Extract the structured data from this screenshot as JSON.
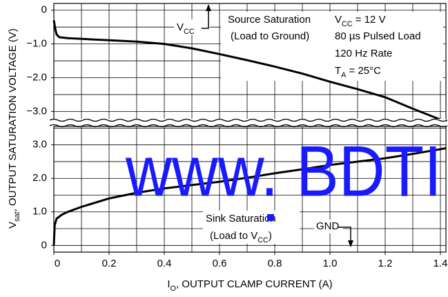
{
  "chart_data": [
    {
      "type": "line",
      "ylabel": [
        "V",
        "sat",
        ", OUTPUT SATURATION VOLTAGE (V)"
      ],
      "xlim": [
        0,
        1.42
      ],
      "xgrid": [
        0.1,
        0.2,
        0.3,
        0.4,
        0.5,
        0.6,
        0.7,
        0.8,
        0.9,
        1.0,
        1.1,
        1.2,
        1.3,
        1.4
      ],
      "ylim": [
        -3.3,
        0.2
      ],
      "yticks": [
        0,
        {
          "value": -1,
          "label": "−1.0"
        },
        {
          "value": -2,
          "label": "−2.0"
        },
        {
          "value": -3,
          "label": "−3.0"
        }
      ],
      "ygrid": [
        0,
        -0.5,
        -1,
        -1.5,
        -2,
        -2.5,
        -3
      ],
      "series": [
        {
          "color": "#000000",
          "x": [
            0,
            0.005,
            0.01,
            0.02,
            0.05,
            0.1,
            0.2,
            0.3,
            0.4,
            0.5,
            0.6,
            0.7,
            0.8,
            0.9,
            1.0,
            1.1,
            1.2,
            1.3,
            1.4,
            1.42
          ],
          "values": [
            -0.3,
            -0.55,
            -0.72,
            -0.8,
            -0.83,
            -0.85,
            -0.89,
            -0.93,
            -1.0,
            -1.13,
            -1.3,
            -1.48,
            -1.67,
            -1.88,
            -2.12,
            -2.34,
            -2.58,
            -2.92,
            -3.24,
            -3.3
          ]
        }
      ],
      "annotations": [
        [
          "V",
          "CC",
          ""
        ],
        [
          "Source Saturation"
        ],
        [
          "(Load to Ground)"
        ],
        [
          "V",
          "CC",
          " = 12 V"
        ],
        [
          "80  µs Pulsed Load"
        ],
        [
          "120 Hz Rate"
        ],
        [
          "T",
          "A",
          " = 25°C"
        ]
      ]
    },
    {
      "type": "line",
      "xlabel": [
        "I",
        "O",
        ", OUTPUT CLAMP CURRENT (A)"
      ],
      "xlim": [
        0,
        1.42
      ],
      "xticks": [
        0,
        0.2,
        0.4,
        0.6,
        0.8,
        {
          "value": 1,
          "label": "1.0"
        },
        1.2,
        1.4
      ],
      "xgrid": [
        0.1,
        0.2,
        0.3,
        0.4,
        0.5,
        0.6,
        0.7,
        0.8,
        0.9,
        1.0,
        1.1,
        1.2,
        1.3,
        1.4
      ],
      "ylim": [
        -0.2,
        3.55
      ],
      "yticks": [
        0,
        {
          "value": 1,
          "label": "1.0"
        },
        {
          "value": 2,
          "label": "2.0"
        },
        {
          "value": 3,
          "label": "3.0"
        }
      ],
      "ygrid": [
        0,
        0.5,
        1,
        1.5,
        2,
        2.5,
        3,
        3.5
      ],
      "series": [
        {
          "color": "#000000",
          "x": [
            0,
            0.003,
            0.01,
            0.03,
            0.05,
            0.1,
            0.2,
            0.3,
            0.4,
            0.5,
            0.6,
            0.7,
            0.8,
            0.9,
            1.0,
            1.1,
            1.2,
            1.3,
            1.4,
            1.42
          ],
          "values": [
            0,
            0.6,
            0.8,
            0.92,
            1.0,
            1.15,
            1.4,
            1.57,
            1.7,
            1.8,
            1.9,
            2.02,
            2.15,
            2.27,
            2.4,
            2.5,
            2.6,
            2.73,
            2.87,
            2.9
          ]
        }
      ],
      "annotations": [
        [
          "Sink Saturation"
        ],
        [
          "(Load to V",
          "CC",
          ")"
        ],
        [
          "GND"
        ]
      ]
    }
  ],
  "watermark": "www. BDTI"
}
